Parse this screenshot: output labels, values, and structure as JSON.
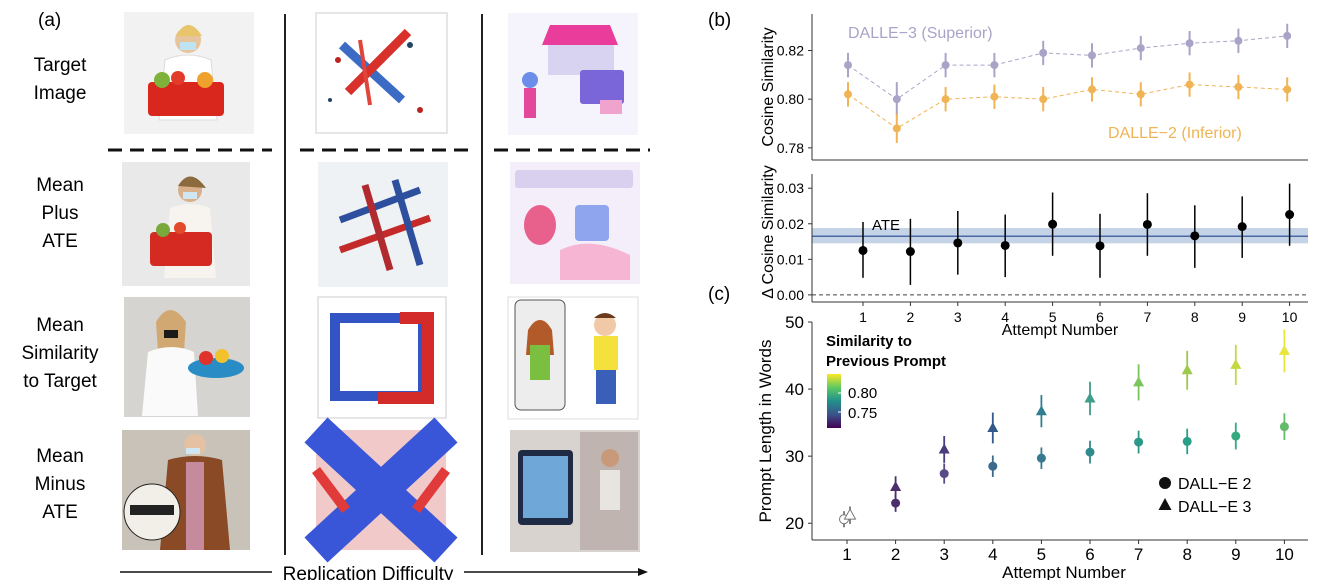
{
  "panel_a": {
    "label": "(a)",
    "row_labels": [
      [
        "Target",
        "Image"
      ],
      [
        "Mean",
        "Plus",
        "ATE"
      ],
      [
        "Mean",
        "Similarity",
        "to Target"
      ],
      [
        "Mean",
        "Minus",
        "ATE"
      ]
    ],
    "x_caption": "Replication Difficulty",
    "image_descriptions": []
  },
  "chart_data": [
    {
      "panel": "(b)",
      "type": "scatter",
      "ylabel": "Cosine Similarity",
      "ylim": [
        0.775,
        0.835
      ],
      "yticks": [
        0.78,
        0.8,
        0.82
      ],
      "ytick_labels": [
        "0.78",
        "0.80",
        "0.82"
      ],
      "x": [
        1,
        2,
        3,
        4,
        5,
        6,
        7,
        8,
        9,
        10
      ],
      "series": [
        {
          "name": "DALLE−3 (Superior)",
          "color": "#aaa3c8",
          "y": [
            0.814,
            0.8,
            0.814,
            0.814,
            0.819,
            0.818,
            0.821,
            0.823,
            0.824,
            0.826
          ],
          "err": [
            0.005,
            0.007,
            0.005,
            0.005,
            0.005,
            0.005,
            0.005,
            0.005,
            0.005,
            0.005
          ]
        },
        {
          "name": "DALLE−2 (Inferior)",
          "color": "#f0b455",
          "y": [
            0.802,
            0.788,
            0.8,
            0.801,
            0.8,
            0.804,
            0.802,
            0.806,
            0.805,
            0.804
          ],
          "err": [
            0.005,
            0.006,
            0.005,
            0.005,
            0.005,
            0.005,
            0.005,
            0.005,
            0.005,
            0.005
          ]
        }
      ]
    },
    {
      "panel": "(b)",
      "type": "scatter",
      "ylabel": "Δ Cosine Similarity",
      "xlabel": "Attempt Number",
      "ylim": [
        -0.002,
        0.034
      ],
      "yticks": [
        0.0,
        0.01,
        0.02,
        0.03
      ],
      "ytick_labels": [
        "0.00",
        "0.01",
        "0.02",
        "0.03"
      ],
      "xticks": [
        "1",
        "2",
        "3",
        "4",
        "5",
        "6",
        "7",
        "8",
        "9",
        "10"
      ],
      "ate_label": "ATE",
      "ate": 0.0165,
      "ate_band": [
        0.0145,
        0.0188
      ],
      "x": [
        1,
        2,
        3,
        4,
        5,
        6,
        7,
        8,
        9,
        10
      ],
      "y": [
        0.0125,
        0.0122,
        0.0146,
        0.0139,
        0.0199,
        0.0138,
        0.0198,
        0.0166,
        0.0192,
        0.0226
      ],
      "lo": [
        0.0048,
        0.0028,
        0.0057,
        0.005,
        0.011,
        0.0048,
        0.011,
        0.0076,
        0.0104,
        0.0138
      ],
      "hi": [
        0.0205,
        0.0214,
        0.0236,
        0.0226,
        0.0288,
        0.0228,
        0.0286,
        0.0252,
        0.0277,
        0.0313
      ],
      "color": "#000000",
      "band_color": "#b7c8e0",
      "line_color": "#4a68a8"
    },
    {
      "panel": "(c)",
      "type": "scatter",
      "ylabel": "Prompt Length in Words",
      "xlabel": "Attempt Number",
      "ylim": [
        17.5,
        50
      ],
      "yticks": [
        20,
        30,
        40,
        50
      ],
      "ytick_labels": [
        "20",
        "30",
        "40",
        "50"
      ],
      "xticks": [
        "1",
        "2",
        "3",
        "4",
        "5",
        "6",
        "7",
        "8",
        "9",
        "10"
      ],
      "colorbar": {
        "title": [
          "Similarity to",
          "Previous Prompt"
        ],
        "ticks": [
          "0.80",
          "0.75"
        ]
      },
      "legend": [
        "DALL−E 2",
        "DALL−E 3"
      ],
      "x": [
        1,
        2,
        3,
        4,
        5,
        6,
        7,
        8,
        9,
        10
      ],
      "series": [
        {
          "name": "DALL−E 2",
          "marker": "circle",
          "y": [
            20.6,
            23.0,
            27.4,
            28.5,
            29.7,
            30.6,
            32.1,
            32.2,
            33.0,
            34.4
          ],
          "err": [
            1.2,
            1.3,
            1.5,
            1.6,
            1.6,
            1.7,
            1.7,
            1.9,
            2.0,
            2.0
          ],
          "colors": [
            "#ffffff",
            "#4b2e6b",
            "#5a4a88",
            "#3b6a8c",
            "#37798f",
            "#318a8c",
            "#2c988a",
            "#2a9f88",
            "#33aa80",
            "#62bc6b"
          ]
        },
        {
          "name": "DALL−E 3",
          "marker": "triangle",
          "y": [
            21.2,
            25.4,
            31.0,
            34.2,
            36.7,
            38.6,
            41.0,
            42.8,
            43.6,
            45.7
          ],
          "err": [
            1.3,
            1.6,
            2.0,
            2.3,
            2.4,
            2.5,
            2.7,
            2.9,
            3.0,
            3.2
          ],
          "colors": [
            "#ffffff",
            "#4b2e6b",
            "#4a3c7d",
            "#33598a",
            "#2e808e",
            "#3f9d8a",
            "#7cc45d",
            "#9ccb4c",
            "#c3d841",
            "#e8e53c"
          ]
        }
      ]
    }
  ]
}
